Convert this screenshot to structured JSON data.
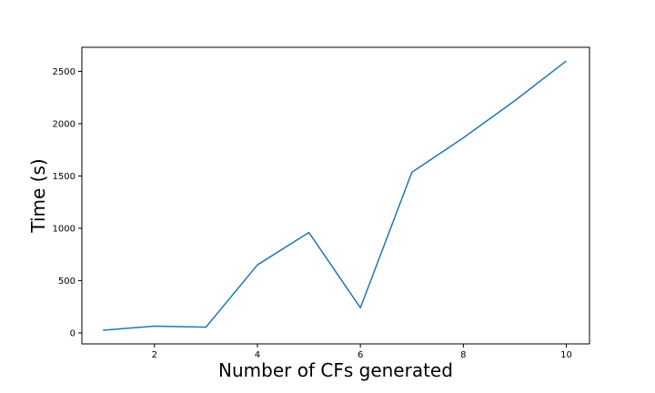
{
  "chart_data": {
    "type": "line",
    "title": "",
    "xlabel": "Number of CFs generated",
    "ylabel": "Time (s)",
    "x": [
      1,
      2,
      3,
      4,
      5,
      6,
      7,
      8,
      9,
      10
    ],
    "series": [
      {
        "values": [
          25,
          65,
          55,
          650,
          960,
          240,
          1535,
          1865,
          2220,
          2600
        ],
        "color": "#1f77b4"
      }
    ],
    "xlim": [
      0.59,
      10.45
    ],
    "ylim": [
      -105,
      2730
    ],
    "xticks": [
      2,
      4,
      6,
      8,
      10
    ],
    "xtick_labels": [
      "2",
      "4",
      "6",
      "8",
      "10"
    ],
    "yticks": [
      0,
      500,
      1000,
      1500,
      2000,
      2500
    ],
    "ytick_labels": [
      "0",
      "500",
      "1000",
      "1500",
      "2000",
      "2500"
    ],
    "grid": false,
    "legend": "none"
  }
}
